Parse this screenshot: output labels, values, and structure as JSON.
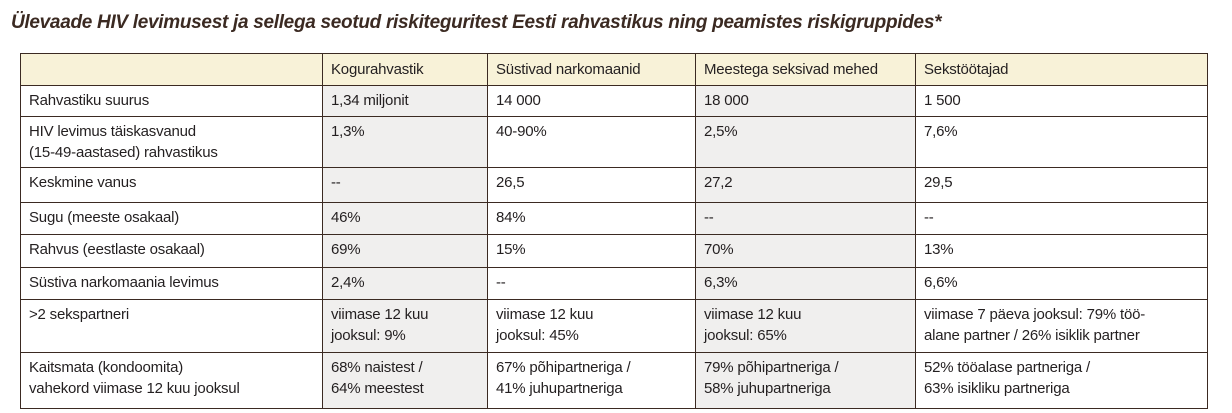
{
  "title": "Ülevaade HIV levimusest ja sellega seotud riskiteguritest Eesti rahvastikus ning peamistes riskigruppides*",
  "table": {
    "headers": [
      "",
      "Kogurahvastik",
      "Süstivad narkomaanid",
      "Meestega seksivad mehed",
      "Sekstöötajad"
    ],
    "rows": [
      [
        "Rahvastiku suurus",
        "1,34 miljonit",
        "14 000",
        "18 000",
        "1 500"
      ],
      [
        "HIV levimus täiskasvanud\n(15-49-aastased) rahvastikus",
        "1,3%",
        "40-90%",
        "2,5%",
        "7,6%"
      ],
      [
        "Keskmine vanus",
        "--",
        "26,5",
        "27,2",
        "29,5"
      ],
      [
        "Sugu (meeste osakaal)",
        "46%",
        "84%",
        "--",
        "--"
      ],
      [
        "Rahvus (eestlaste osakaal)",
        "69%",
        "15%",
        "70%",
        "13%"
      ],
      [
        "Süstiva narkomaania levimus",
        "2,4%",
        "--",
        "6,3%",
        "6,6%"
      ],
      [
        ">2 sekspartneri",
        "viimase 12 kuu\njooksul: 9%",
        "viimase 12 kuu\njooksul: 45%",
        "viimase 12 kuu\njooksul: 65%",
        "viimase 7 päeva jooksul: 79% töö-\nalane partner / 26% isiklik partner"
      ],
      [
        "Kaitsmata (kondoomita)\nvahekord viimase 12 kuu jooksul",
        "68% naistest /\n64% meestest",
        "67% põhipartneriga /\n41% juhupartneriga",
        "79% põhipartneriga /\n58% juhupartneriga",
        "52% tööalase partneriga /\n63% isikliku partneriga"
      ]
    ]
  }
}
